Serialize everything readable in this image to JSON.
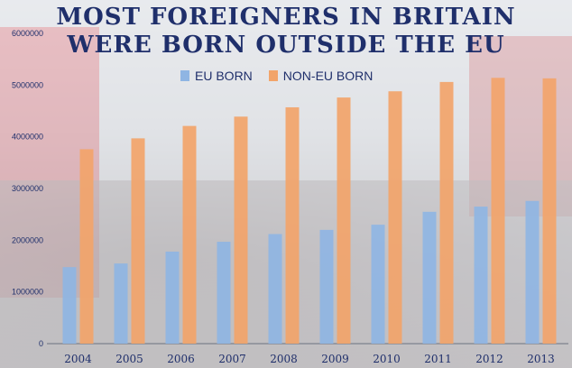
{
  "title_lines": [
    "MOST FOREIGNERS IN BRITAIN",
    "WERE BORN OUTSIDE THE EU"
  ],
  "colors": {
    "eu": "#8fb5e3",
    "non_eu": "#f2a46a",
    "title": "#1f2f6b",
    "axis_text": "#1f2f6b"
  },
  "chart_data": {
    "type": "bar",
    "categories": [
      "2004",
      "2005",
      "2006",
      "2007",
      "2008",
      "2009",
      "2010",
      "2011",
      "2012",
      "2013"
    ],
    "series": [
      {
        "name": "EU BORN",
        "values": [
          1480000,
          1550000,
          1780000,
          1970000,
          2120000,
          2200000,
          2300000,
          2550000,
          2650000,
          2760000
        ]
      },
      {
        "name": "NON-EU BORN",
        "values": [
          3760000,
          3970000,
          4210000,
          4390000,
          4570000,
          4760000,
          4880000,
          5060000,
          5140000,
          5130000
        ]
      }
    ],
    "ylim": [
      0,
      6000000
    ],
    "yticks": [
      "0",
      "1000000",
      "2000000",
      "3000000",
      "4000000",
      "5000000",
      "6000000"
    ],
    "legend_position": "top-center",
    "grid": false
  }
}
